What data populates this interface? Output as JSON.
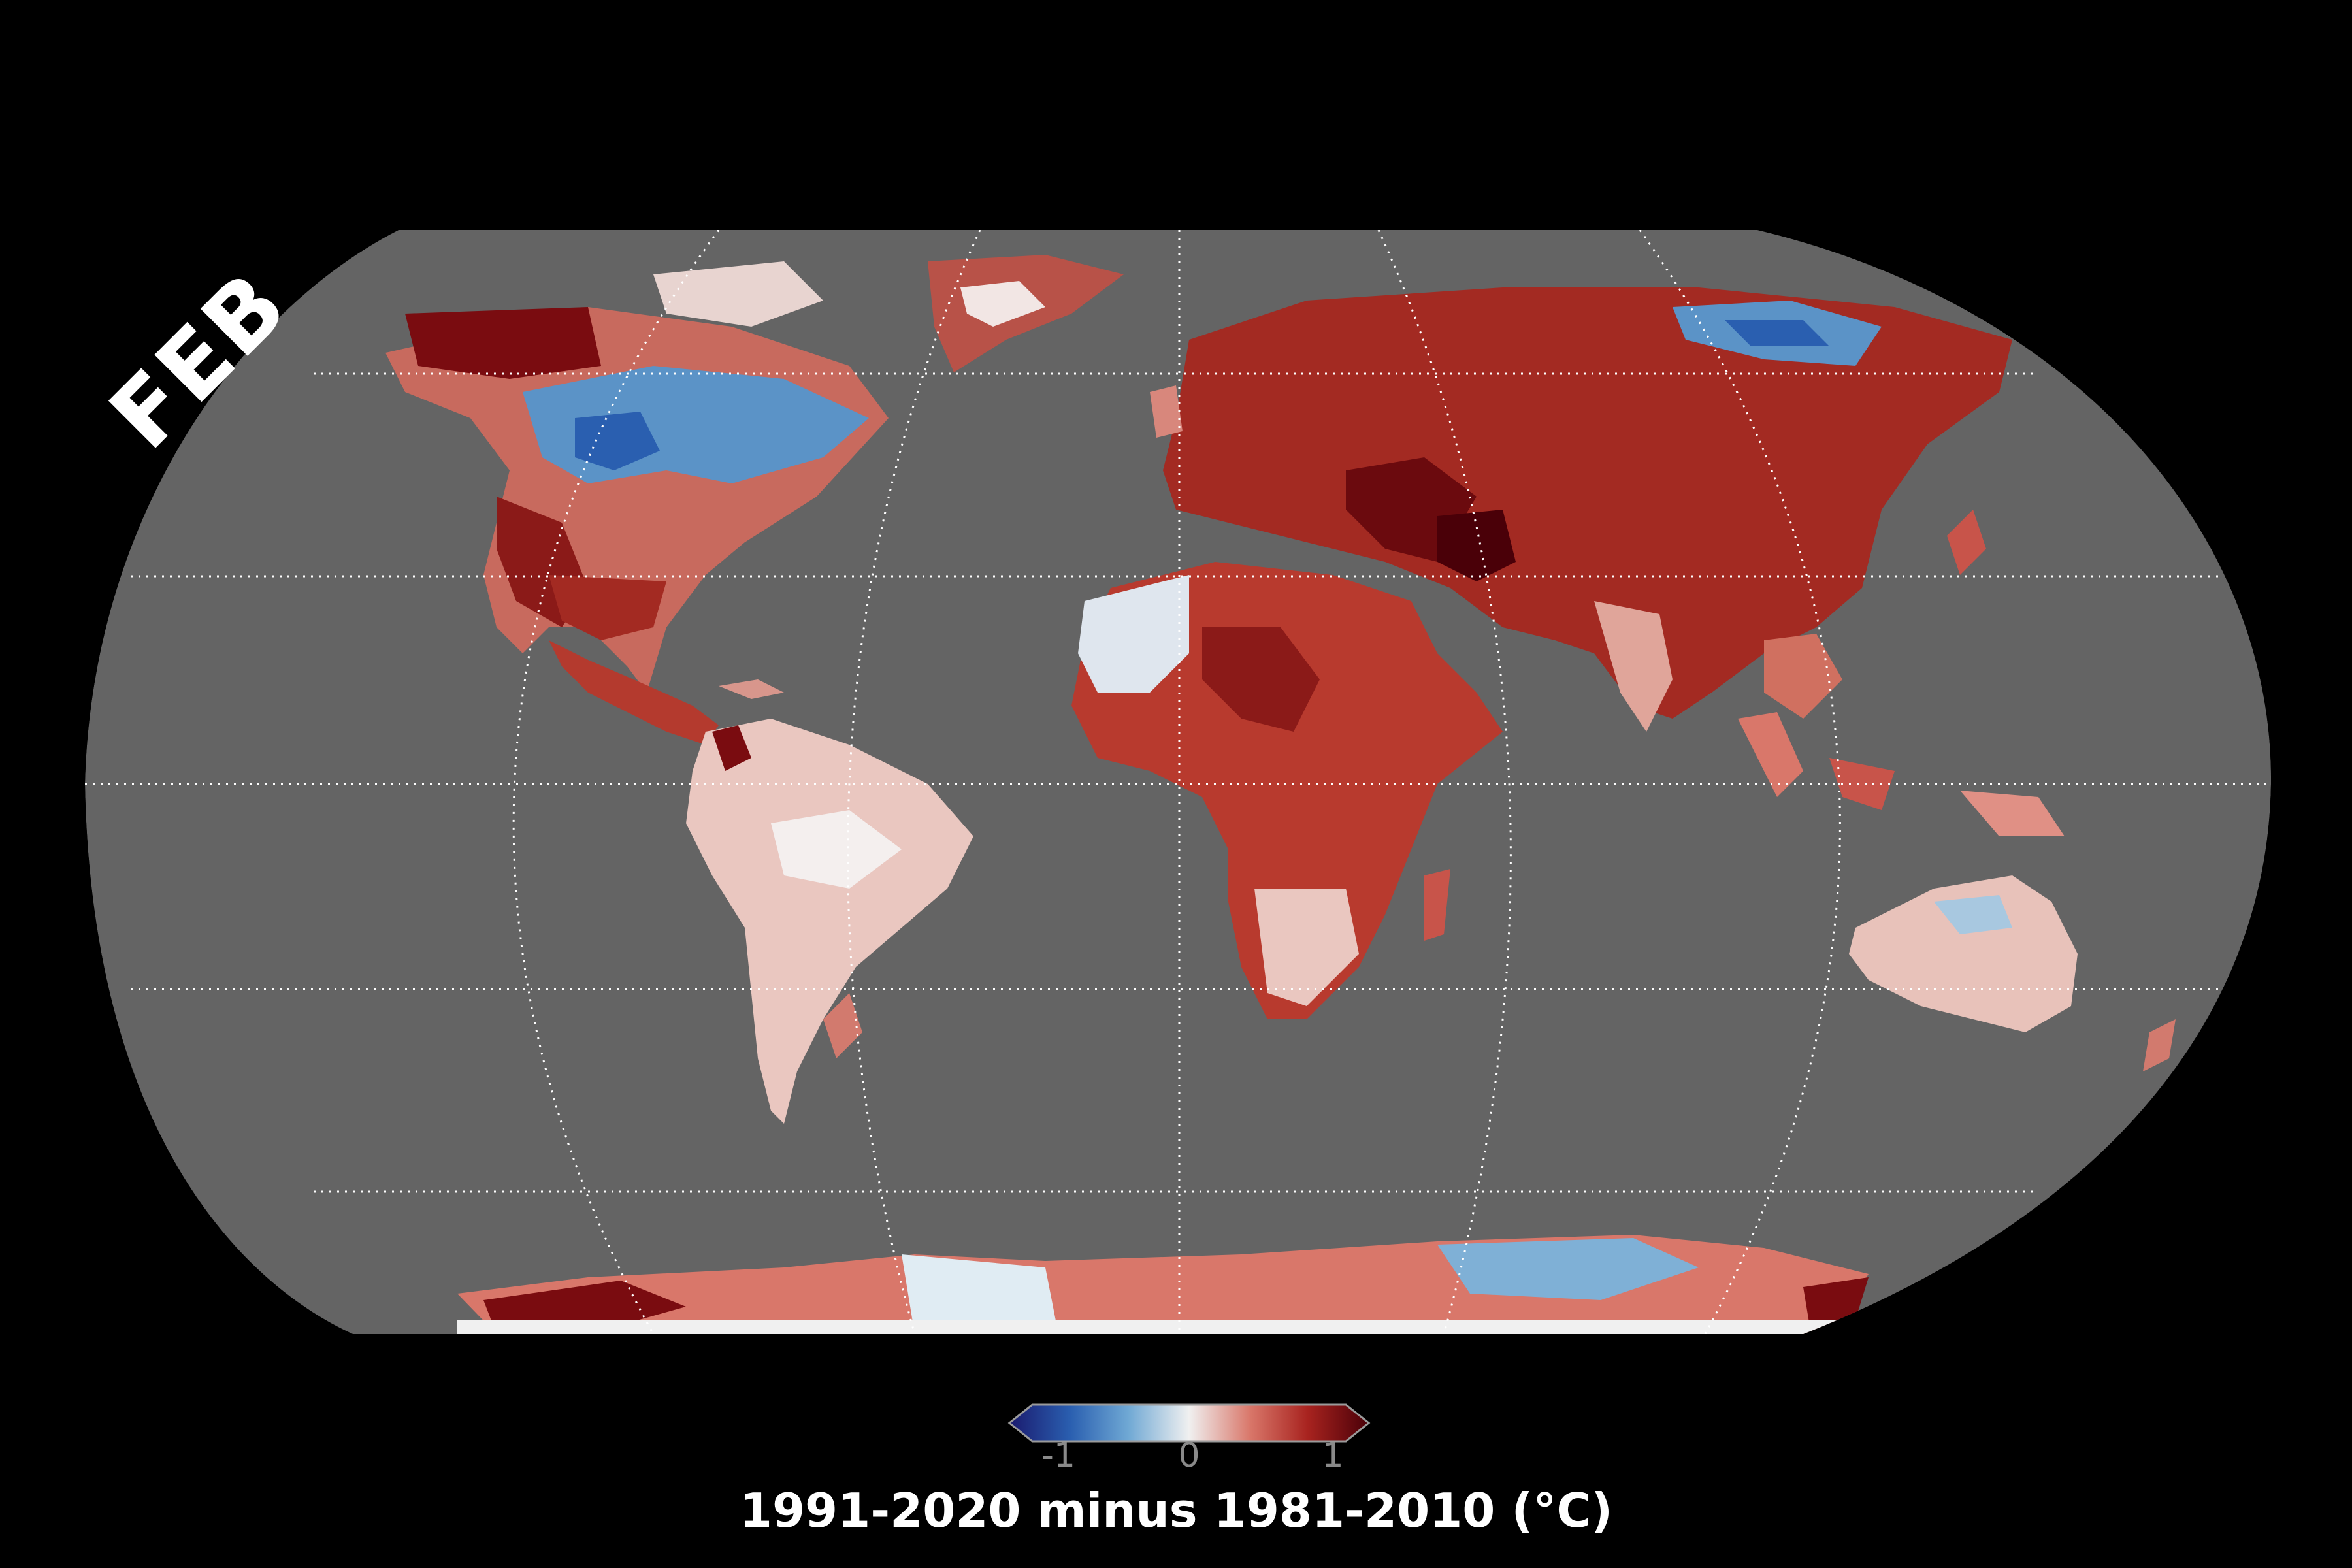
{
  "map": {
    "month": "FEB",
    "projection": "Robinson",
    "ocean_color": "#646464",
    "background_color": "#000000",
    "graticule": "dotted white, 30° spacing"
  },
  "colorbar": {
    "title": "1991-2020 minus 1981-2010 (°C)",
    "ticks": [
      "-1",
      "0",
      "1"
    ],
    "tick_values": [
      -1,
      0,
      1
    ],
    "range": [
      -1,
      1
    ],
    "colors": [
      "#1a1a6e",
      "#2a5fb0",
      "#6fa8d4",
      "#f0f0f0",
      "#d9776a",
      "#a8231f",
      "#4a0008"
    ]
  }
}
